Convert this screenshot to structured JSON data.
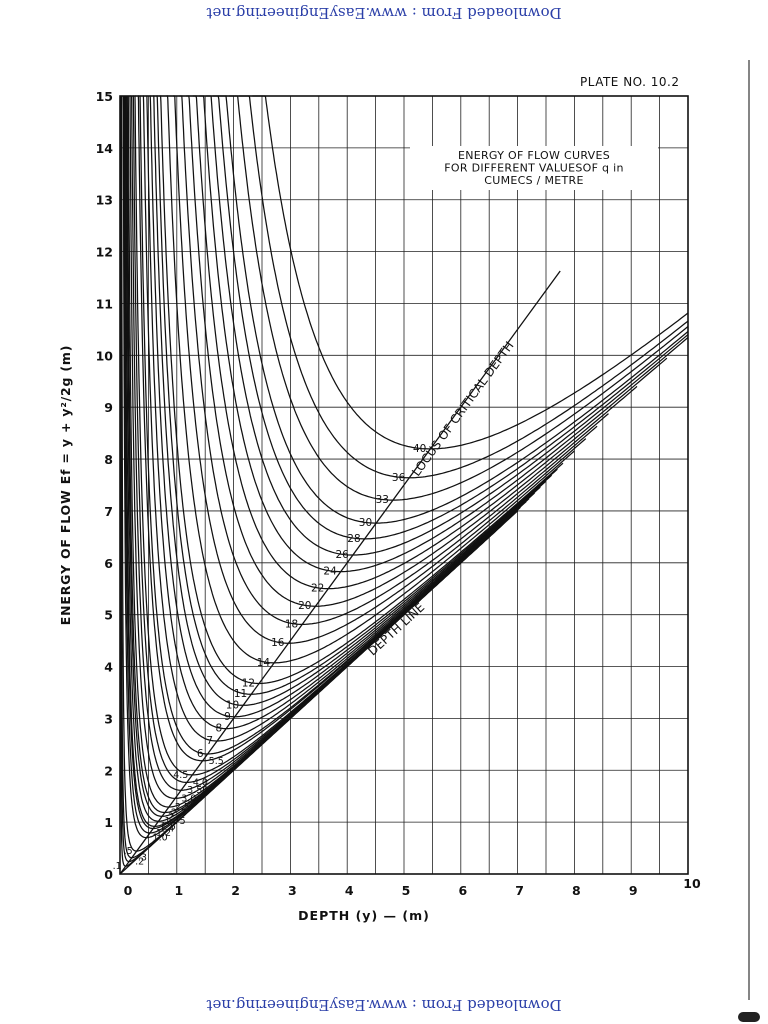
{
  "watermark": {
    "top": "Downloaded From : www.EasyEngineering.net",
    "bottom": "Downloaded From : www.EasyEngineering.net"
  },
  "plate": "PLATE  NO. 10.2",
  "chart_data": {
    "type": "line",
    "title_lines": [
      "ENERGY  OF FLOW CURVES",
      "FOR DIFFERENT VALUESOF  q  in",
      "CUMECS / METRE"
    ],
    "ylabel": "ENERGY OF FLOW  Ef = y + y²/2g  (m)",
    "xlabel": "DEPTH  (y) — (m)",
    "xlim": [
      0,
      10
    ],
    "ylim": [
      0,
      15
    ],
    "x_ticks": [
      "0",
      "1",
      "2",
      "3",
      "4",
      "5",
      "6",
      "7",
      "8",
      "9",
      "10"
    ],
    "y_ticks": [
      "0",
      "1",
      "2",
      "3",
      "4",
      "5",
      "6",
      "7",
      "8",
      "9",
      "10",
      "11",
      "12",
      "13",
      "14",
      "15"
    ],
    "grid": true,
    "formula": "E = y + q² / (2 g y²), g = 9.81",
    "q_values": [
      0.1,
      0.2,
      0.3,
      0.5,
      1.0,
      1.2,
      1.4,
      1.5,
      1.75,
      2.0,
      2.2,
      2.5,
      3.0,
      3.5,
      4.0,
      4.5,
      5.5,
      6,
      7,
      8,
      9,
      10,
      11,
      12,
      14,
      16,
      18,
      20,
      22,
      24,
      26,
      28,
      30,
      33,
      36,
      40
    ],
    "labelled_q": [
      {
        "q": 0.1,
        "text": ".1",
        "side": "left"
      },
      {
        "q": 0.2,
        "text": ".2",
        "side": "right"
      },
      {
        "q": 0.3,
        "text": ".3",
        "side": "right"
      },
      {
        "q": 0.5,
        "text": ".5",
        "side": "left"
      },
      {
        "q": 1.0,
        "text": "1.0",
        "side": "right"
      },
      {
        "q": 1.2,
        "text": "1.2",
        "side": "right"
      },
      {
        "q": 1.4,
        "text": "1.4",
        "side": "right"
      },
      {
        "q": 1.5,
        "text": "1.5",
        "side": "right"
      },
      {
        "q": 1.75,
        "text": "1.75",
        "side": "right"
      },
      {
        "q": 2.0,
        "text": "2",
        "side": "right"
      },
      {
        "q": 2.2,
        "text": "2.2",
        "side": "right"
      },
      {
        "q": 2.5,
        "text": "2.5",
        "side": "right"
      },
      {
        "q": 3.0,
        "text": "3.0",
        "side": "right"
      },
      {
        "q": 3.5,
        "text": "3.50",
        "side": "right"
      },
      {
        "q": 4.0,
        "text": "4.0",
        "side": "right"
      },
      {
        "q": 4.5,
        "text": "4.5",
        "side": "left"
      },
      {
        "q": 5.5,
        "text": "5.5",
        "side": "right"
      },
      {
        "q": 6,
        "text": "6",
        "side": "left"
      },
      {
        "q": 7,
        "text": "7",
        "side": "left"
      },
      {
        "q": 8,
        "text": "8",
        "side": "left"
      },
      {
        "q": 9,
        "text": "9",
        "side": "left"
      },
      {
        "q": 10,
        "text": "10",
        "side": "left"
      },
      {
        "q": 11,
        "text": "11",
        "side": "left"
      },
      {
        "q": 12,
        "text": "12",
        "side": "left"
      },
      {
        "q": 14,
        "text": "14",
        "side": "left"
      },
      {
        "q": 16,
        "text": "16",
        "side": "left"
      },
      {
        "q": 18,
        "text": "18",
        "side": "left"
      },
      {
        "q": 20,
        "text": "20",
        "side": "left"
      },
      {
        "q": 22,
        "text": "22",
        "side": "left"
      },
      {
        "q": 24,
        "text": "24",
        "side": "left"
      },
      {
        "q": 26,
        "text": "26",
        "side": "left"
      },
      {
        "q": 28,
        "text": "28",
        "side": "left"
      },
      {
        "q": 30,
        "text": "30",
        "side": "left"
      },
      {
        "q": 33,
        "text": "33",
        "side": "left"
      },
      {
        "q": 36,
        "text": "36",
        "side": "left"
      },
      {
        "q": 40,
        "text": "40",
        "side": "left"
      }
    ],
    "critical_locus": {
      "label": "LOCUS OF CRITICAL DEPTH",
      "relation": "E = 1.5 y",
      "x_range": [
        0,
        7.75
      ]
    },
    "depth_line": {
      "label": "DEPTH LINE",
      "relation": "E = y",
      "x_range": [
        0,
        7
      ]
    }
  }
}
